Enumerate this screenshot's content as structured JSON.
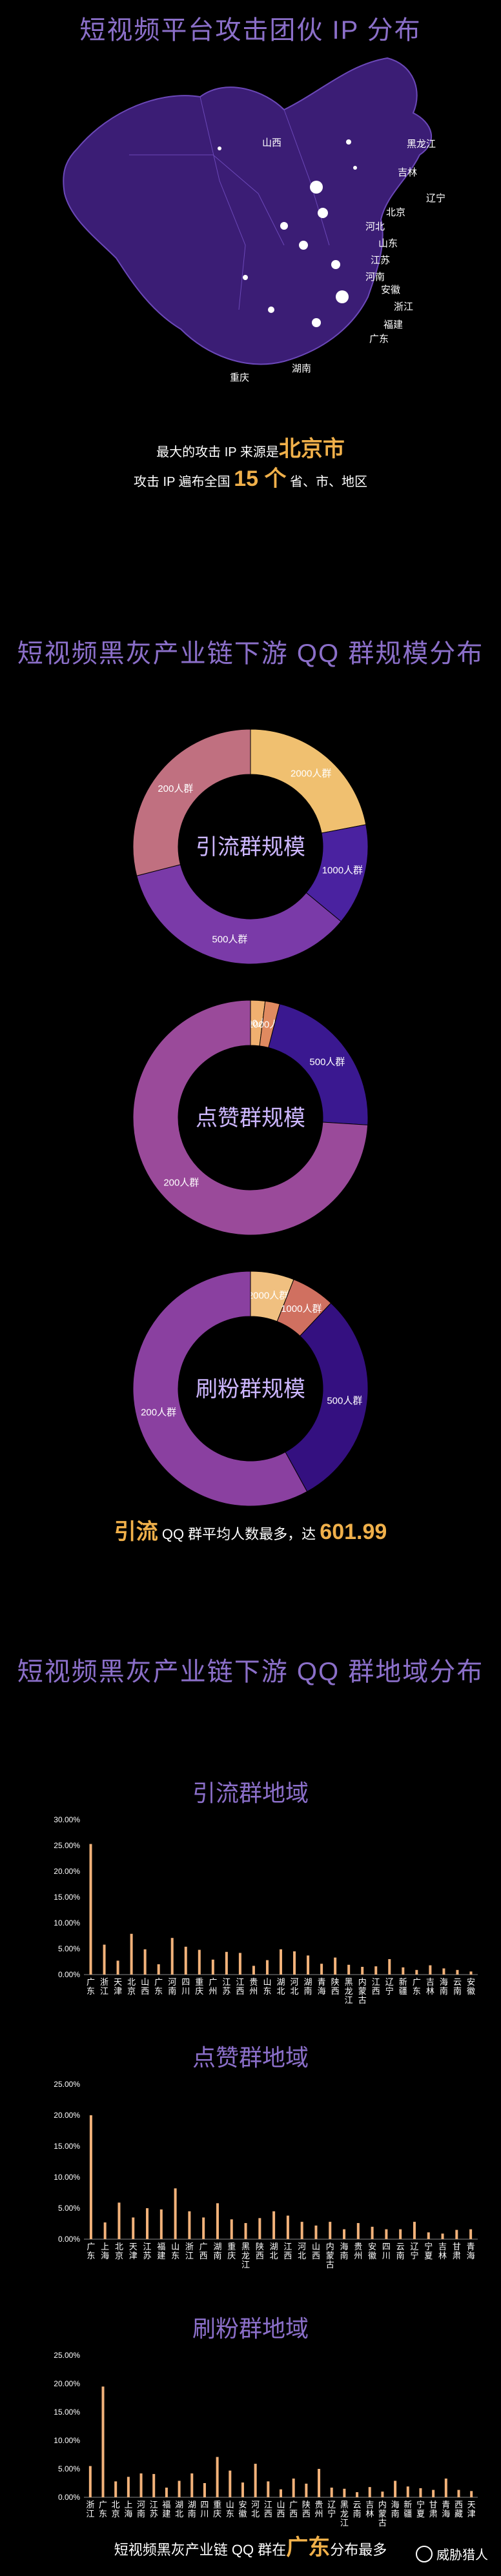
{
  "section1": {
    "title": "短视频平台攻击团伙 IP 分布",
    "labels": [
      "山西",
      "黑龙江",
      "吉林",
      "辽宁",
      "北京",
      "河北",
      "山东",
      "江苏",
      "河南",
      "安徽",
      "浙江",
      "福建",
      "广东",
      "湖南",
      "重庆"
    ],
    "text1_prefix": "最大的攻击 IP 来源是",
    "text1_value": "北京市",
    "text2_prefix": "攻击 IP 遍布全国",
    "text2_value": "15 个",
    "text2_suffix": "省、市、地区"
  },
  "section2": {
    "title": "短视频黑灰产业链下游 QQ 群规模分布",
    "note_prefix": "引流",
    "note_middle": "QQ 群平均人数最多，达",
    "note_value": "601.99"
  },
  "section3": {
    "title": "短视频黑灰产业链下游 QQ 群地域分布",
    "footer_prefix": "短视频黑灰产业链 QQ 群在",
    "footer_value": "广东",
    "footer_suffix": "分布最多"
  },
  "watermark": {
    "text": "威胁猎人"
  },
  "chart_data": [
    {
      "type": "pie",
      "title": "引流群规模",
      "slices": [
        {
          "label": "2000人群",
          "value": 22,
          "color": "#f0c070"
        },
        {
          "label": "1000人群",
          "value": 14,
          "color": "#4a22a0"
        },
        {
          "label": "500人群",
          "value": 35,
          "color": "#7a3aa8"
        },
        {
          "label": "200人群",
          "value": 29,
          "color": "#c07080"
        }
      ]
    },
    {
      "type": "pie",
      "title": "点赞群规模",
      "slices": [
        {
          "label": "2000人群",
          "value": 2,
          "color": "#f0b070"
        },
        {
          "label": "1000人群",
          "value": 2,
          "color": "#e08a60"
        },
        {
          "label": "500人群",
          "value": 22,
          "color": "#3a1890"
        },
        {
          "label": "200人群",
          "value": 74,
          "color": "#9a4a9a"
        }
      ]
    },
    {
      "type": "pie",
      "title": "刷粉群规模",
      "slices": [
        {
          "label": "2000人群",
          "value": 6,
          "color": "#f0c080"
        },
        {
          "label": "1000人群",
          "value": 6,
          "color": "#d07060"
        },
        {
          "label": "500人群",
          "value": 30,
          "color": "#341080"
        },
        {
          "label": "200人群",
          "value": 58,
          "color": "#8a40a0"
        }
      ]
    },
    {
      "type": "bar",
      "title": "引流群地域",
      "categories": [
        "广东",
        "浙江",
        "天津",
        "北京",
        "山西",
        "广东",
        "河南",
        "四川",
        "重庆",
        "广州",
        "江苏",
        "江西",
        "贵州",
        "山东",
        "湖北",
        "河北",
        "湖南",
        "青海",
        "陕西",
        "黑龙江",
        "内蒙古",
        "江西",
        "辽宁",
        "新疆",
        "广东",
        "吉林",
        "海南",
        "云南",
        "安徽"
      ],
      "values": [
        25.3,
        5.8,
        2.7,
        7.9,
        4.9,
        2.0,
        7.1,
        5.4,
        4.8,
        2.9,
        4.4,
        4.2,
        1.7,
        2.8,
        4.9,
        4.5,
        3.7,
        2.1,
        3.3,
        1.9,
        1.5,
        1.6,
        3.0,
        1.4,
        0.9,
        1.8,
        1.2,
        0.9,
        0.6
      ],
      "ylim": [
        0,
        30
      ],
      "yticks": [
        "0.00%",
        "5.00%",
        "10.00%",
        "15.00%",
        "20.00%",
        "25.00%",
        "30.00%"
      ]
    },
    {
      "type": "bar",
      "title": "点赞群地域",
      "categories": [
        "广东",
        "上海",
        "北京",
        "天津",
        "江苏",
        "福建",
        "山东",
        "浙江",
        "广西",
        "湖南",
        "重庆",
        "黑龙江",
        "陕西",
        "湖北",
        "江西",
        "河北",
        "山西",
        "内蒙古",
        "海南",
        "贵州",
        "安徽",
        "四川",
        "云南",
        "辽宁",
        "宁夏",
        "吉林",
        "甘肃",
        "青海"
      ],
      "values": [
        20.0,
        2.7,
        5.9,
        3.5,
        5.0,
        4.8,
        8.2,
        4.5,
        3.5,
        5.8,
        3.2,
        2.6,
        3.4,
        4.5,
        3.8,
        2.8,
        2.2,
        2.8,
        1.6,
        2.6,
        2.0,
        1.6,
        1.6,
        2.8,
        1.1,
        0.9,
        1.5,
        1.6
      ],
      "ylim": [
        0,
        25
      ],
      "yticks": [
        "0.00%",
        "5.00%",
        "10.00%",
        "15.00%",
        "20.00%",
        "25.00%"
      ]
    },
    {
      "type": "bar",
      "title": "刷粉群地域",
      "categories": [
        "浙江",
        "广东",
        "北京",
        "上海",
        "河南",
        "江苏",
        "福建",
        "湖北",
        "湖南",
        "四川",
        "重庆",
        "山东",
        "安徽",
        "河北",
        "江西",
        "山西",
        "广西",
        "陕西",
        "贵州",
        "辽宁",
        "黑龙江",
        "云南",
        "吉林",
        "内蒙古",
        "海南",
        "新疆",
        "宁夏",
        "甘肃",
        "青海",
        "西藏",
        "天津"
      ],
      "values": [
        5.5,
        19.5,
        2.8,
        3.6,
        4.2,
        4.1,
        1.7,
        2.9,
        4.2,
        2.5,
        7.1,
        4.7,
        2.6,
        5.9,
        2.8,
        1.4,
        3.3,
        2.4,
        5.0,
        1.7,
        1.5,
        0.9,
        1.8,
        1.0,
        2.9,
        1.9,
        1.6,
        1.3,
        3.3,
        1.3,
        1.1
      ],
      "ylim": [
        0,
        25
      ],
      "yticks": [
        "0.00%",
        "5.00%",
        "10.00%",
        "15.00%",
        "20.00%",
        "25.00%"
      ]
    }
  ]
}
